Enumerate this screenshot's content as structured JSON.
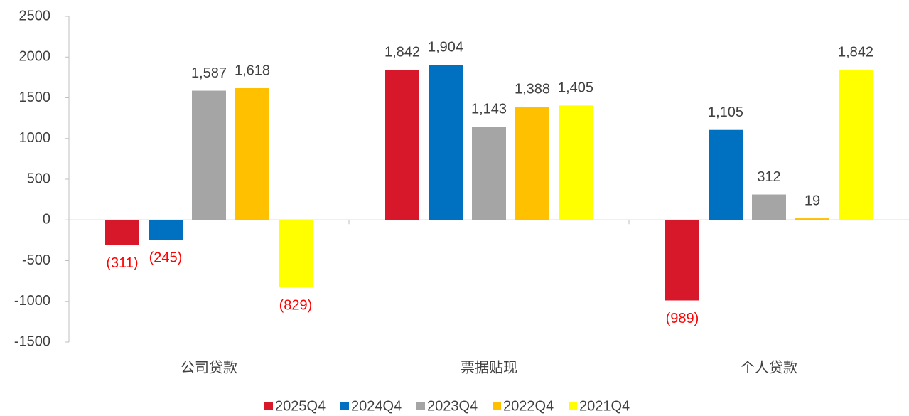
{
  "chart_data": {
    "type": "bar",
    "categories": [
      "公司贷款",
      "票据贴现",
      "个人贷款"
    ],
    "series": [
      {
        "name": "2025Q4",
        "color": "#d7182a",
        "values": [
          -311,
          1842,
          -989
        ],
        "value_labels": [
          "(311)",
          "1,842",
          "(989)"
        ]
      },
      {
        "name": "2024Q4",
        "color": "#0070c0",
        "values": [
          -245,
          1904,
          1105
        ],
        "value_labels": [
          "(245)",
          "1,904",
          "1,105"
        ]
      },
      {
        "name": "2023Q4",
        "color": "#a5a5a5",
        "values": [
          1587,
          1143,
          312
        ],
        "value_labels": [
          "1,587",
          "1,143",
          "312"
        ]
      },
      {
        "name": "2022Q4",
        "color": "#ffc000",
        "values": [
          1618,
          1388,
          19
        ],
        "value_labels": [
          "1,618",
          "1,388",
          "19"
        ]
      },
      {
        "name": "2021Q4",
        "color": "#ffff00",
        "values": [
          -829,
          1405,
          1842
        ],
        "value_labels": [
          "(829)",
          "1,405",
          "1,842"
        ]
      }
    ],
    "ylim": [
      -1500,
      2500
    ],
    "yticks": [
      -1500,
      -1000,
      -500,
      0,
      500,
      1000,
      1500,
      2000,
      2500
    ],
    "grid": false,
    "legend": "bottom",
    "label_color": "#404040",
    "negative_label_color": "#ff0000"
  }
}
